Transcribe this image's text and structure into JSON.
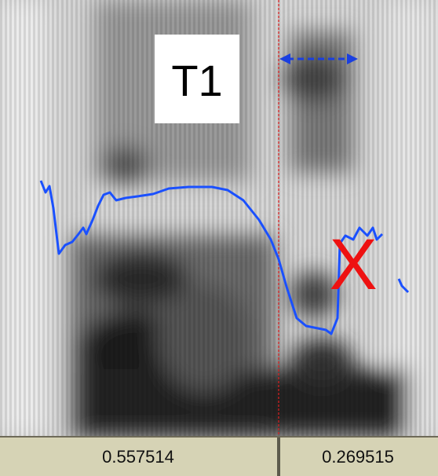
{
  "tone_label": "T1",
  "mark": "X",
  "durations": [
    "0.557514",
    "0.269515"
  ]
}
